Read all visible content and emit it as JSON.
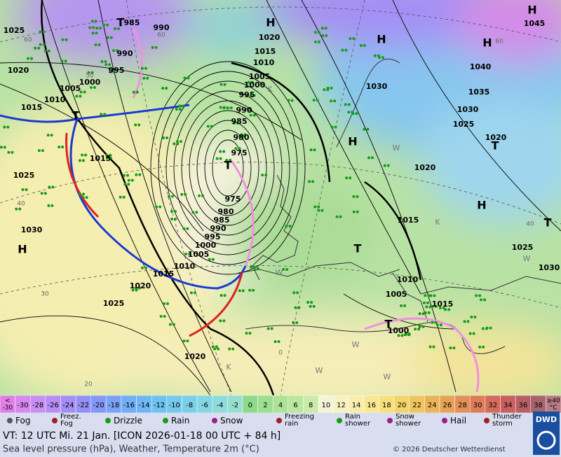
{
  "map": {
    "pressure_labels": [
      "1025",
      "985",
      "990",
      "990",
      "995",
      "1000",
      "1005",
      "1010",
      "1015",
      "1020",
      "1015",
      "1025",
      "1030",
      "1020",
      "1015",
      "1010",
      "1005",
      "1000",
      "995",
      "990",
      "985",
      "980",
      "975",
      "975",
      "980",
      "985",
      "990",
      "995",
      "1000",
      "1005",
      "1010",
      "1015",
      "1020",
      "1025",
      "1020",
      "1030",
      "1040",
      "1035",
      "1030",
      "1025",
      "1020",
      "1020",
      "1015",
      "1025",
      "1030",
      "1010",
      "1005",
      "1015",
      "1000",
      "1045"
    ],
    "pressure_centers": [
      "T",
      "H",
      "H",
      "H",
      "H",
      "T",
      "T",
      "H",
      "T",
      "H",
      "T",
      "T",
      "H",
      "T"
    ],
    "grid_labels": [
      "60",
      "50",
      "40",
      "30",
      "20",
      "60",
      "40",
      "0",
      "60"
    ],
    "type_letters": [
      "K",
      "W",
      "K",
      "W",
      "W",
      "W",
      "K",
      "W",
      "W"
    ]
  },
  "temperature_scale": [
    {
      "label": "<\n-30",
      "color": "#e27ee8"
    },
    {
      "label": "-30",
      "color": "#d789ef"
    },
    {
      "label": "-28",
      "color": "#c98ef2"
    },
    {
      "label": "-26",
      "color": "#b88ef4"
    },
    {
      "label": "-24",
      "color": "#a68df5"
    },
    {
      "label": "-22",
      "color": "#9490f6"
    },
    {
      "label": "-20",
      "color": "#8499f7"
    },
    {
      "label": "-18",
      "color": "#7aa3f6"
    },
    {
      "label": "-16",
      "color": "#72adf5"
    },
    {
      "label": "-14",
      "color": "#6fb7f3"
    },
    {
      "label": "-12",
      "color": "#70c1f0"
    },
    {
      "label": "-10",
      "color": "#74c9ec"
    },
    {
      "label": "-8",
      "color": "#7bd0e8"
    },
    {
      "label": "-6",
      "color": "#84d6e2"
    },
    {
      "label": "-4",
      "color": "#8edbda"
    },
    {
      "label": "-2",
      "color": "#98ded0"
    },
    {
      "label": "0",
      "color": "#8fd98a"
    },
    {
      "label": "2",
      "color": "#9ddf8f"
    },
    {
      "label": "4",
      "color": "#ace396"
    },
    {
      "label": "6",
      "color": "#bbe79e"
    },
    {
      "label": "8",
      "color": "#caeba8"
    },
    {
      "label": "10",
      "color": "#f4f4d8"
    },
    {
      "label": "12",
      "color": "#f7f2c2"
    },
    {
      "label": "14",
      "color": "#f8eeaa"
    },
    {
      "label": "16",
      "color": "#f8e892"
    },
    {
      "label": "18",
      "color": "#f5e07b"
    },
    {
      "label": "20",
      "color": "#f2d46a"
    },
    {
      "label": "22",
      "color": "#efc560"
    },
    {
      "label": "24",
      "color": "#ecb45a"
    },
    {
      "label": "26",
      "color": "#e8a257"
    },
    {
      "label": "28",
      "color": "#e39057"
    },
    {
      "label": "30",
      "color": "#dd7d58"
    },
    {
      "label": "32",
      "color": "#d46b5b"
    },
    {
      "label": "34",
      "color": "#c9605f"
    },
    {
      "label": "36",
      "color": "#b85f66"
    },
    {
      "label": "38",
      "color": "#a8646d"
    },
    {
      "label": "≥40\n°C",
      "color": "#b77b82"
    }
  ],
  "weather_legend": [
    "Fog",
    "Freez.\nFog",
    "Drizzle",
    "Rain",
    "Snow",
    "Freezing\nrain",
    "Rain\nshower",
    "Snow\nshower",
    "Hail",
    "Thunder\nstorm"
  ],
  "footer": {
    "valid_time": "VT: 12 UTC Mi.   21 Jan. [ICON 2026-01-18  00 UTC + 84 h]",
    "description": "Sea level pressure (hPa), Weather, Temperature 2m (°C)",
    "copyright": "© 2026 Deutscher Wetterdienst",
    "logo": "DWD"
  }
}
